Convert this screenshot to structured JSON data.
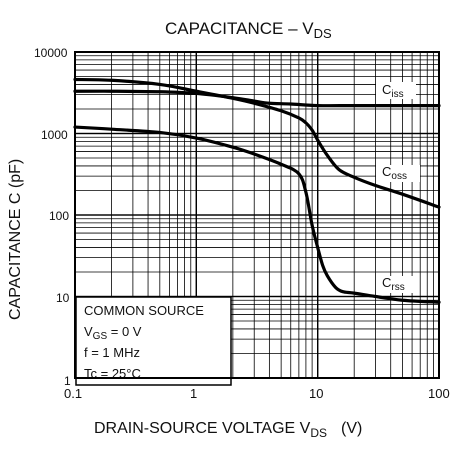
{
  "chart_data": {
    "type": "line",
    "title": "CAPACITANCE – V",
    "title_sub": "DS",
    "xlabel": "DRAIN-SOURCE VOLTAGE   V",
    "xlabel_sub": "DS",
    "xlabel_unit": "(V)",
    "ylabel": "CAPACITANCE   C   (pF)",
    "x_scale": "log",
    "y_scale": "log",
    "xlim": [
      0.1,
      100
    ],
    "ylim": [
      1,
      10000
    ],
    "grid": true,
    "x_ticks": [
      "0.1",
      "1",
      "10",
      "100"
    ],
    "y_ticks": [
      "1",
      "10",
      "100",
      "1000",
      "10000"
    ],
    "series": [
      {
        "name": "C",
        "name_sub": "iss",
        "x": [
          0.1,
          0.2,
          0.5,
          1,
          2,
          3,
          4,
          6,
          10,
          20,
          50,
          100
        ],
        "y": [
          3300,
          3300,
          3250,
          3100,
          2750,
          2500,
          2350,
          2300,
          2200,
          2200,
          2200,
          2200
        ]
      },
      {
        "name": "C",
        "name_sub": "oss",
        "x": [
          0.1,
          0.2,
          0.5,
          1,
          2,
          3,
          5,
          7,
          8,
          9,
          10,
          12,
          15,
          20,
          30,
          50,
          100
        ],
        "y": [
          4600,
          4500,
          4000,
          3300,
          2700,
          2350,
          1900,
          1550,
          1350,
          1100,
          830,
          540,
          360,
          290,
          230,
          180,
          125
        ]
      },
      {
        "name": "C",
        "name_sub": "rss",
        "x": [
          0.1,
          0.2,
          0.5,
          1,
          2,
          3,
          5,
          7,
          8,
          9,
          10,
          11,
          12,
          14,
          16,
          20,
          30,
          50,
          100
        ],
        "y": [
          1200,
          1130,
          1030,
          880,
          680,
          560,
          420,
          320,
          190,
          75,
          40,
          24,
          18,
          13,
          11.5,
          11,
          10,
          9,
          8.5
        ]
      }
    ],
    "legend_box": {
      "lines": [
        "COMMON SOURCE",
        "V",
        "f = 1 MHz",
        "Tc = 25°C"
      ],
      "vgs_sub": "GS",
      "vgs_value": " = 0 V"
    }
  }
}
